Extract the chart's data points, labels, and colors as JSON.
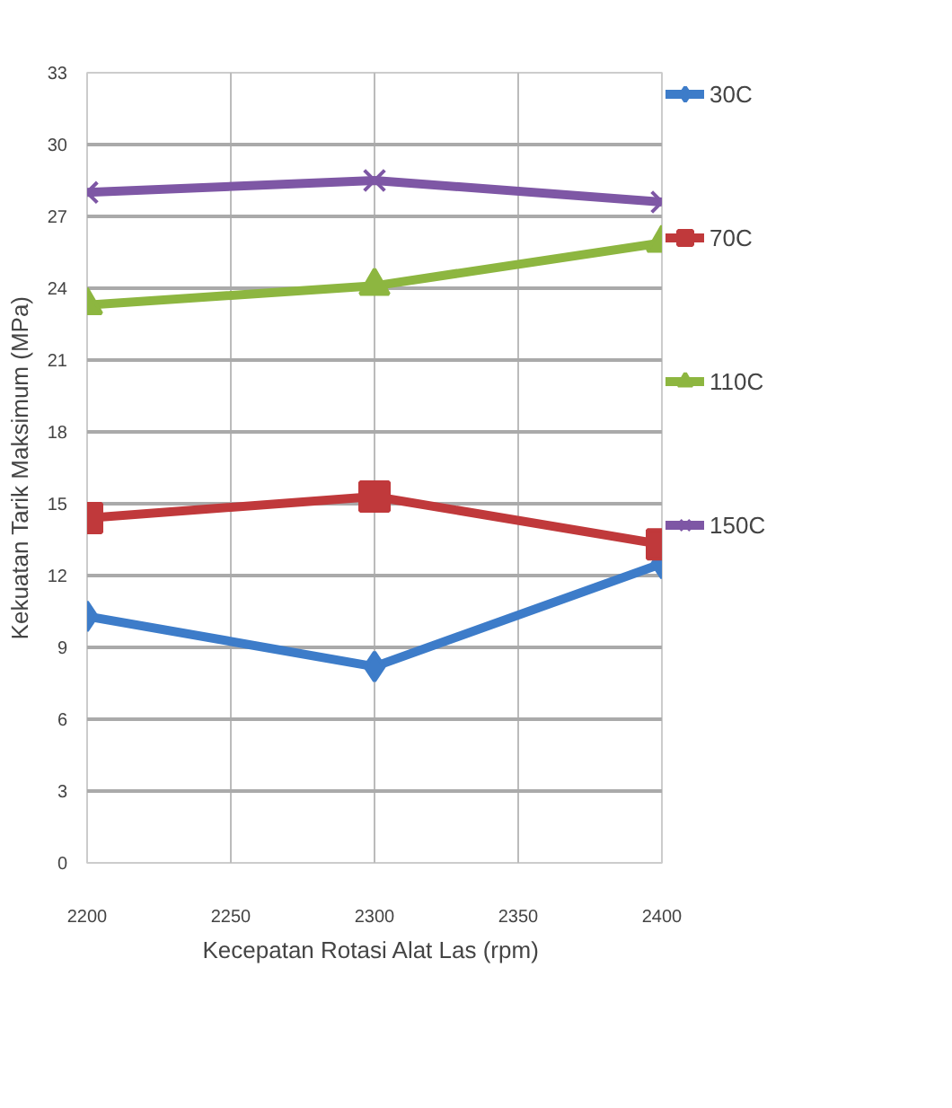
{
  "chart_data": {
    "type": "line",
    "xlabel": "Kecepatan Rotasi  Alat Las (rpm)",
    "ylabel": "Kekuatan Tarik Maksimum (MPa)",
    "x": [
      2200,
      2300,
      2400
    ],
    "xlim": [
      2200,
      2400
    ],
    "xticks": [
      2200,
      2250,
      2300,
      2350,
      2400
    ],
    "ylim": [
      0,
      33
    ],
    "yticks": [
      0,
      3,
      6,
      9,
      12,
      15,
      18,
      21,
      24,
      27,
      30,
      33
    ],
    "grid": true,
    "legend": "right",
    "series": [
      {
        "name": "30C",
        "color": "#3d7cc9",
        "marker": "diamond",
        "values": [
          10.3,
          8.2,
          12.5
        ]
      },
      {
        "name": "70C",
        "color": "#c0393b",
        "marker": "square",
        "values": [
          14.4,
          15.3,
          13.3
        ]
      },
      {
        "name": "110C",
        "color": "#8db640",
        "marker": "triangle",
        "values": [
          23.3,
          24.1,
          25.9
        ]
      },
      {
        "name": "150C",
        "color": "#7e57a5",
        "marker": "cross",
        "values": [
          28.0,
          28.5,
          27.6
        ]
      }
    ]
  }
}
